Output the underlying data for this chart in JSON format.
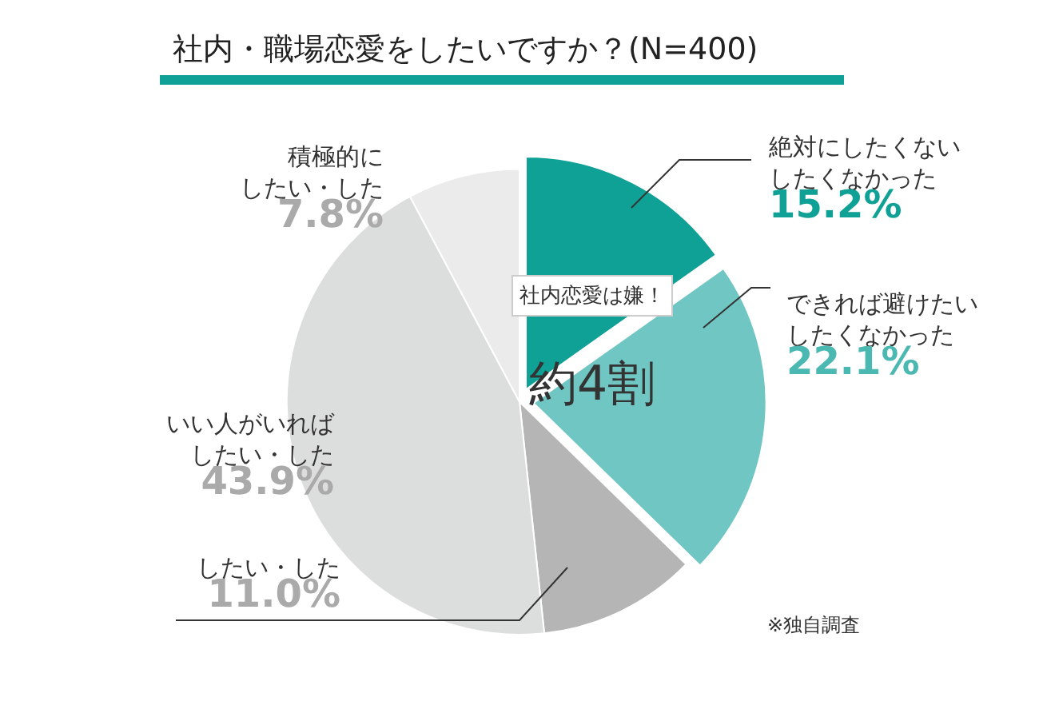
{
  "chart_data": {
    "type": "pie",
    "title": "社内・職場恋愛をしたいですか？(N=400)",
    "categories": [
      "絶対にしたくないしたくなかった",
      "できれば避けたいしたくなかった",
      "したい・した",
      "いい人がいればしたい・した",
      "積極的にしたい・した"
    ],
    "values": [
      15.2,
      22.1,
      11.0,
      43.9,
      7.8
    ],
    "value_labels": [
      "15.2%",
      "22.1%",
      "11.0%",
      "43.9%",
      "7.8%"
    ],
    "colors": [
      "#0fa096",
      "#6fc6c2",
      "#b4b5b4",
      "#dcdddd",
      "#ebebeb"
    ],
    "annotations": [
      "社内恋愛は嫌！",
      "約4割",
      "※独自調査"
    ],
    "legend": false
  }
}
